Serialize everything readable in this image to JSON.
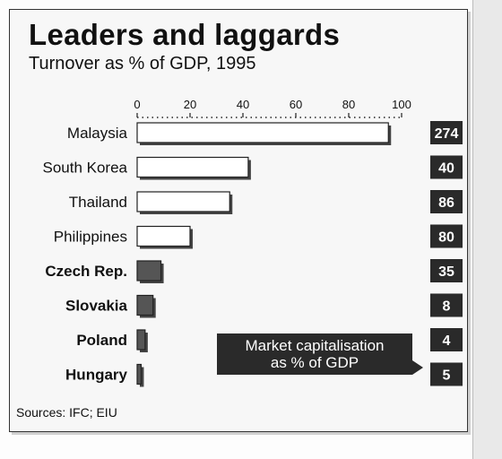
{
  "title": "Leaders and laggards",
  "subtitle": "Turnover as % of GDP, 1995",
  "source": "Sources: IFC; EIU",
  "chart_data": {
    "type": "bar",
    "orientation": "horizontal",
    "title": "Leaders and laggards",
    "subtitle": "Turnover as % of GDP, 1995",
    "categories": [
      "Malaysia",
      "South Korea",
      "Thailand",
      "Philippines",
      "Czech Rep.",
      "Slovakia",
      "Poland",
      "Hungary"
    ],
    "values": [
      95,
      42,
      35,
      20,
      9,
      6,
      3,
      1.5
    ],
    "xlim": [
      0,
      100
    ],
    "x_ticks": [
      0,
      20,
      40,
      60,
      80,
      100
    ],
    "grid": false,
    "bar_styles": [
      "white",
      "white",
      "white",
      "white",
      "dark",
      "dark",
      "dark",
      "dark"
    ],
    "secondary_series": {
      "name": "Market capitalisation as % of GDP",
      "values": [
        274,
        40,
        86,
        80,
        35,
        8,
        4,
        5
      ]
    },
    "callout_lines": [
      "Market capitalisation",
      "as % of GDP"
    ]
  },
  "colors": {
    "dark_bar": "#555555",
    "box": "#2a2a2a",
    "white_bar": "#ffffff"
  }
}
